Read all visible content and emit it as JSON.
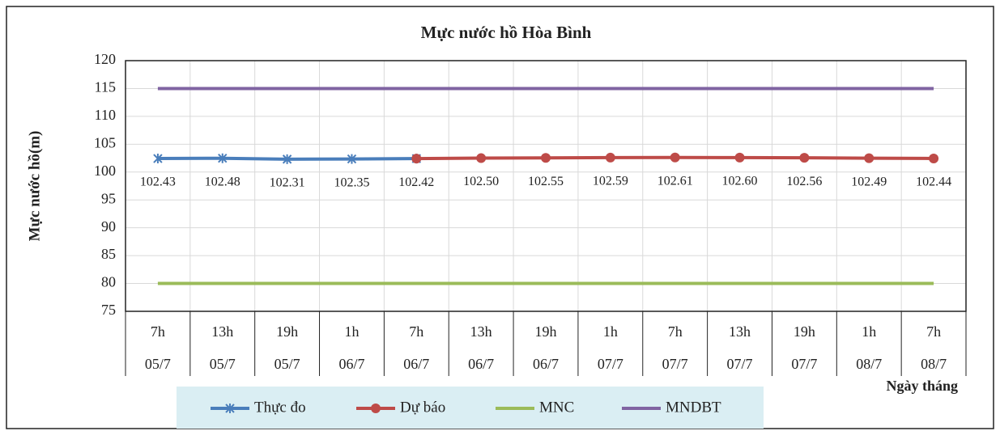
{
  "chart_data": {
    "type": "line",
    "title": "Mực nước hồ Hòa Bình",
    "y_label": "Mực nước hồ(m)",
    "x_label": "Ngày tháng",
    "categories": [
      "7h",
      "13h",
      "19h",
      "1h",
      "7h",
      "13h",
      "19h",
      "1h",
      "7h",
      "13h",
      "19h",
      "1h",
      "7h"
    ],
    "dates": [
      "05/7",
      "05/7",
      "05/7",
      "06/7",
      "06/7",
      "06/7",
      "06/7",
      "07/7",
      "07/7",
      "07/7",
      "07/7",
      "08/7",
      "08/7"
    ],
    "series": [
      {
        "name": "Thực đo",
        "color": "#4a7ebb",
        "marker": "star",
        "values": [
          102.43,
          102.48,
          102.31,
          102.35,
          102.42,
          null,
          null,
          null,
          null,
          null,
          null,
          null,
          null
        ],
        "value_labels": [
          "102.43",
          "102.48",
          "102.31",
          "102.35",
          null,
          null,
          null,
          null,
          null,
          null,
          null,
          null,
          null
        ]
      },
      {
        "name": "Dự báo",
        "color": "#be4b48",
        "marker": "circle",
        "values": [
          null,
          null,
          null,
          null,
          102.42,
          102.5,
          102.55,
          102.59,
          102.61,
          102.6,
          102.56,
          102.49,
          102.44
        ],
        "value_labels": [
          null,
          null,
          null,
          null,
          "102.42",
          "102.50",
          "102.55",
          "102.59",
          "102.61",
          "102.60",
          "102.56",
          "102.49",
          "102.44"
        ]
      },
      {
        "name": "MNC",
        "color": "#9bbb59",
        "marker": "none",
        "values": [
          80,
          80,
          80,
          80,
          80,
          80,
          80,
          80,
          80,
          80,
          80,
          80,
          80
        ]
      },
      {
        "name": "MNDBT",
        "color": "#8064a2",
        "marker": "none",
        "values": [
          115,
          115,
          115,
          115,
          115,
          115,
          115,
          115,
          115,
          115,
          115,
          115,
          115
        ]
      }
    ],
    "ylim": [
      75,
      120
    ],
    "yticks": [
      75,
      80,
      85,
      90,
      95,
      100,
      105,
      110,
      115,
      120
    ],
    "grid": true,
    "legend": "bottom"
  }
}
